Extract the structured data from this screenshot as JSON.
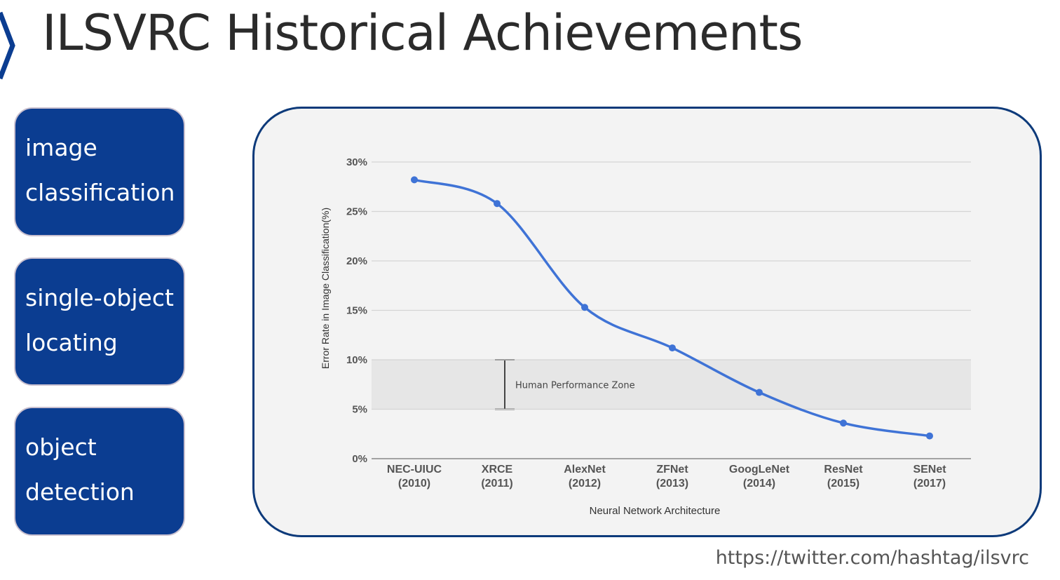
{
  "slide": {
    "title": "ILSVRC Historical Achievements",
    "accent_color": "#0b3d91",
    "icon": "chevron-right-icon"
  },
  "tasks": [
    {
      "lines": [
        "image",
        "classification"
      ]
    },
    {
      "lines": [
        "single-object",
        "locating"
      ]
    },
    {
      "lines": [
        "object",
        "detection"
      ]
    }
  ],
  "chart_data": {
    "type": "line",
    "categories": [
      "NEC-UIUC (2010)",
      "XRCE (2011)",
      "AlexNet (2012)",
      "ZFNet (2013)",
      "GoogLeNet (2014)",
      "ResNet (2015)",
      "SENet (2017)"
    ],
    "category_labels": [
      [
        "NEC-UIUC",
        "(2010)"
      ],
      [
        "XRCE",
        "(2011)"
      ],
      [
        "AlexNet",
        "(2012)"
      ],
      [
        "ZFNet",
        "(2013)"
      ],
      [
        "GoogLeNet",
        "(2014)"
      ],
      [
        "ResNet",
        "(2015)"
      ],
      [
        "SENet",
        "(2017)"
      ]
    ],
    "values": [
      28.2,
      25.8,
      15.3,
      11.2,
      6.7,
      3.6,
      2.3
    ],
    "xlabel": "Neural Network Architecture",
    "ylabel": "Error Rate in Image Classification(%)",
    "ylim": [
      0,
      30
    ],
    "yticks": [
      0,
      5,
      10,
      15,
      20,
      25,
      30
    ],
    "ytick_labels": [
      "0%",
      "5%",
      "10%",
      "15%",
      "20%",
      "25%",
      "30%"
    ],
    "grid": true,
    "line_color": "#3f73d6",
    "human_zone": {
      "label": "Human Performance Zone",
      "range": [
        5,
        10
      ]
    }
  },
  "source": {
    "url": "https://twitter.com/hashtag/ilsvrc"
  }
}
